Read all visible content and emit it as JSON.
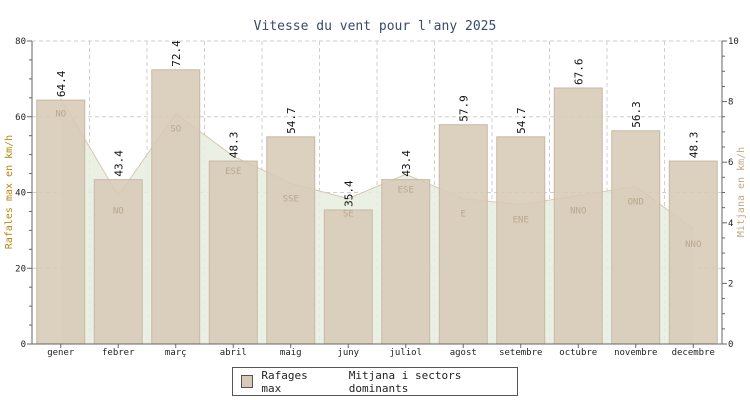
{
  "chart_data": {
    "type": "bar",
    "title": "Vitesse du vent pour l'any 2025",
    "ylabel_left": "Rafales max en km/h",
    "ylabel_right": "Mitjana en km/h",
    "ylim_left": [
      0,
      80
    ],
    "ylim_right": [
      0,
      10
    ],
    "yticks_left": [
      0,
      20,
      40,
      60,
      80
    ],
    "yticks_right": [
      0,
      2,
      4,
      6,
      8,
      10
    ],
    "grid": true,
    "legend_position": "bottom",
    "categories": [
      "gener",
      "febrer",
      "març",
      "abril",
      "maig",
      "juny",
      "juliol",
      "agost",
      "setembre",
      "octubre",
      "novembre",
      "decembre"
    ],
    "series": [
      {
        "name": "Rafages max",
        "type": "bar",
        "axis": "left",
        "values": [
          64.4,
          43.4,
          72.4,
          48.3,
          54.7,
          35.4,
          43.4,
          57.9,
          54.7,
          67.6,
          56.3,
          48.3
        ]
      },
      {
        "name": "Mitjana i sectors dominants",
        "type": "area",
        "axis": "right",
        "values": [
          8.1,
          4.9,
          7.6,
          6.2,
          5.3,
          4.8,
          5.6,
          4.8,
          4.6,
          4.9,
          5.2,
          3.8
        ],
        "sectors": [
          "NO",
          "NO",
          "SO",
          "ESE",
          "SSE",
          "SE",
          "ESE",
          "E",
          "ENE",
          "NNO",
          "OND",
          "NNO"
        ]
      }
    ],
    "colors": {
      "bar_fill": "#d7c9b6",
      "bar_stroke": "#c8b9a4",
      "area_fill": "#e6efdf",
      "area_line": "#d9c8b2",
      "sector_text": "#b8a88f",
      "left_axis_label": "#b8860b",
      "right_axis_label": "#c0a888"
    }
  },
  "legend": {
    "bars_label": "Rafages max",
    "area_label": "Mitjana i sectors dominants"
  }
}
